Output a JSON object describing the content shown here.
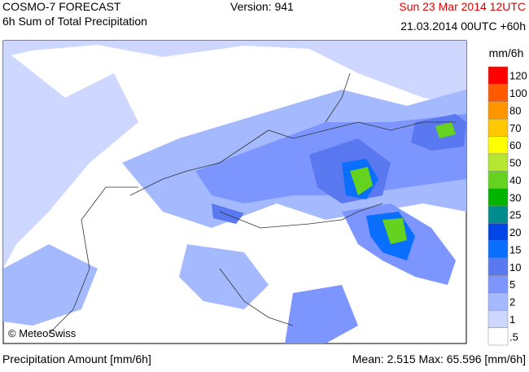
{
  "header": {
    "title": "COSMO-7 FORECAST",
    "subtitle": "6h Sum of Total Precipitation",
    "version": "Version: 941",
    "valid_time": "Sun 23 Mar 2014 12UTC",
    "run_time": "21.03.2014 00UTC +60h"
  },
  "map": {
    "copyright": "© MeteoSwiss"
  },
  "legend": {
    "unit": "mm/6h",
    "entries": [
      {
        "label": "120",
        "color": "#ff0000"
      },
      {
        "label": "100",
        "color": "#ff5a00"
      },
      {
        "label": "80",
        "color": "#ff9600"
      },
      {
        "label": "70",
        "color": "#ffc800"
      },
      {
        "label": "60",
        "color": "#ffff00"
      },
      {
        "label": "50",
        "color": "#b4e632"
      },
      {
        "label": "40",
        "color": "#64d21e"
      },
      {
        "label": "30",
        "color": "#00b400"
      },
      {
        "label": "25",
        "color": "#008c8c"
      },
      {
        "label": "20",
        "color": "#0046e6"
      },
      {
        "label": "15",
        "color": "#0a6eff"
      },
      {
        "label": "10",
        "color": "#5a78f0"
      },
      {
        "label": "5",
        "color": "#7d96ff"
      },
      {
        "label": "2",
        "color": "#a5b9ff"
      },
      {
        "label": "1",
        "color": "#cdd7ff"
      },
      {
        "label": ".5",
        "color": "#ffffff"
      }
    ]
  },
  "footer": {
    "left": "Precipitation Amount [mm/6h]",
    "right": "Mean:  2.515 Max: 65.596 [mm/6h]"
  }
}
